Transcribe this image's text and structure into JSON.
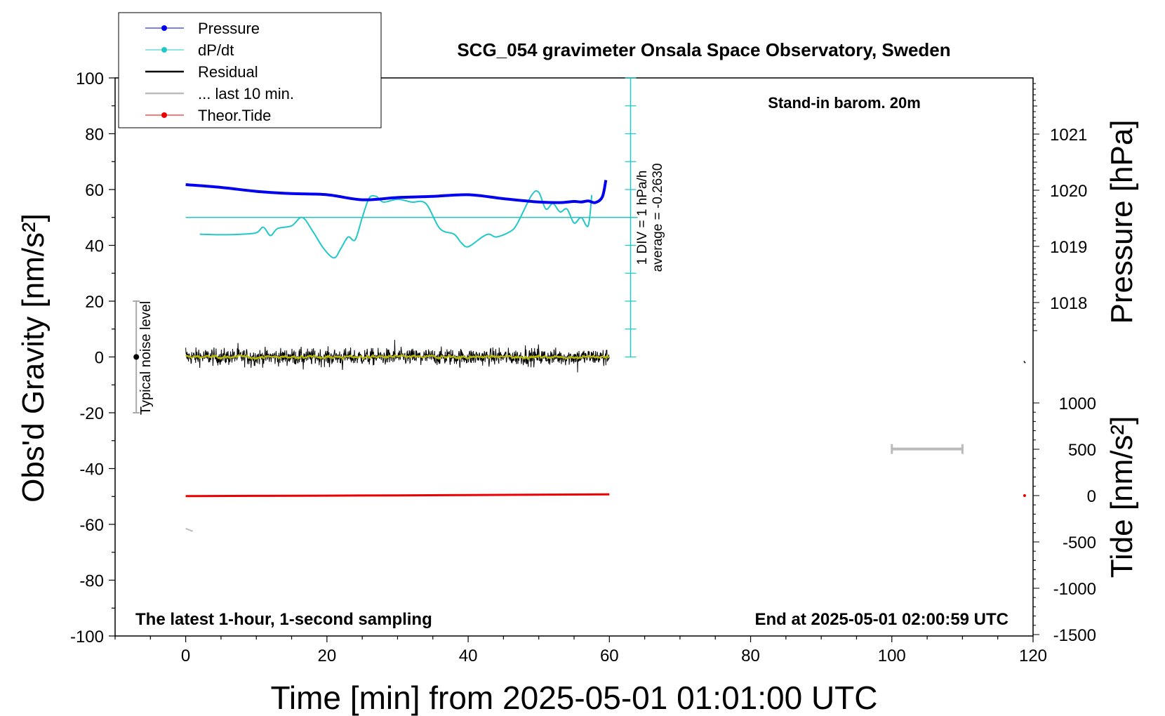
{
  "chart_data": {
    "type": "line",
    "title": "SCG_054 gravimeter Onsala Space Observatory, Sweden",
    "xlabel": "Time [min] from 2025-05-01 01:01:00 UTC",
    "ylabel_left": "Obs'd Gravity [nm/s²]",
    "ylabel_right_top": "Pressure [hPa]",
    "ylabel_right_bottom": "Tide [nm/s²]",
    "xlim": [
      -10,
      120
    ],
    "ylim": [
      -100,
      100
    ],
    "x_ticks": [
      "0",
      "20",
      "40",
      "60",
      "80",
      "100",
      "120"
    ],
    "y_ticks": [
      "100",
      "80",
      "60",
      "40",
      "20",
      "0",
      "-20",
      "-40",
      "-60",
      "-80",
      "-100"
    ],
    "pressure_ticks": [
      "1021",
      "1020",
      "1019",
      "1018"
    ],
    "tide_ticks": [
      "1000",
      "500",
      "0",
      "-500",
      "-1000",
      "-1500"
    ],
    "annotations": {
      "stand_in": "Stand-in barom. 20m",
      "latest": "The latest 1-hour, 1-second sampling",
      "end_at": "End at 2025-05-01 02:00:59 UTC",
      "scale_line1": "1 DIV = 1 hPa/h",
      "scale_line2": "average = -0.2630",
      "noise": "Typical noise level"
    },
    "legend": [
      {
        "name": "Pressure",
        "color": "#0000ee",
        "marker": "dot"
      },
      {
        "name": "dP/dt",
        "color": "#22c8c8",
        "marker": "dot"
      },
      {
        "name": "Residual",
        "color": "#000000",
        "marker": "line"
      },
      {
        "name": "... last 10 min.",
        "color": "#bbbbbb",
        "marker": "line"
      },
      {
        "name": "Theor.Tide",
        "color": "#ee0000",
        "marker": "dot"
      }
    ],
    "series": [
      {
        "name": "Pressure",
        "axis": "pressure",
        "color": "#0000ee",
        "x": [
          0,
          5,
          10,
          15,
          20,
          25,
          30,
          35,
          40,
          45,
          50,
          53,
          55,
          56,
          57,
          58,
          59,
          59.5
        ],
        "values": [
          1020.1,
          1020.05,
          1019.98,
          1019.94,
          1019.92,
          1019.83,
          1019.87,
          1019.89,
          1019.92,
          1019.85,
          1019.79,
          1019.78,
          1019.8,
          1019.79,
          1019.81,
          1019.78,
          1019.88,
          1020.18
        ]
      },
      {
        "name": "dP/dt",
        "axis": "gravity",
        "color": "#22c8c8",
        "x": [
          2,
          5,
          8,
          10,
          11,
          12,
          13,
          15,
          16.5,
          18,
          19.5,
          21,
          22,
          23,
          24,
          25,
          26,
          27,
          28,
          30,
          32,
          34,
          36,
          38,
          39,
          40,
          42,
          43,
          44,
          46,
          47,
          49,
          50,
          51,
          52,
          53,
          54,
          55,
          56,
          57,
          57.5
        ],
        "values": [
          44,
          43.8,
          44,
          44.5,
          46.5,
          43.5,
          46,
          47,
          50,
          45,
          39,
          35.5,
          39,
          43,
          42,
          50,
          57,
          57.5,
          55.5,
          56.5,
          55.5,
          55,
          46,
          44,
          41,
          39.5,
          43,
          44,
          43,
          45,
          48,
          58,
          59,
          53,
          55,
          52,
          53,
          48,
          50,
          47,
          58
        ]
      },
      {
        "name": "Residual",
        "axis": "gravity",
        "color": "#000000",
        "x": [
          0,
          60
        ],
        "values": [
          0,
          0
        ]
      },
      {
        "name": "... last 10 min.",
        "axis": "gravity",
        "color": "#b8b800",
        "x": [
          0,
          60
        ],
        "values": [
          0,
          0
        ]
      },
      {
        "name": "Theor.Tide",
        "axis": "tide",
        "color": "#ee0000",
        "x": [
          0,
          10,
          20,
          30,
          40,
          50,
          60
        ],
        "values": [
          -5,
          -3,
          -1,
          2,
          6,
          10,
          14
        ]
      }
    ],
    "grid": false,
    "legend_position": "top-left"
  },
  "colors": {
    "pressure": "#0000ee",
    "dpdt": "#22c8c8",
    "residual": "#000000",
    "last10": "#bbbbbb",
    "residual_smooth": "#b8b800",
    "tide": "#ee0000"
  }
}
